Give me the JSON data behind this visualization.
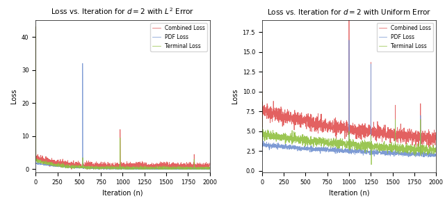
{
  "title1": "Loss vs. Iteration for $d = 2$ with $L^2$ Error",
  "title2": "Loss vs. Iteration for $d = 2$ with Uniform Error",
  "xlabel": "Iteration (n)",
  "ylabel": "Loss",
  "legend_labels": [
    "Combined Loss",
    "PDF Loss",
    "Terminal Loss"
  ],
  "colors": [
    "#e05050",
    "#7090d0",
    "#90c040"
  ],
  "n_iter": 2000,
  "xlim": [
    0,
    2000
  ],
  "ylim1": [
    -1,
    45
  ],
  "ylim2": [
    -0.2,
    19
  ],
  "yticks1": [
    0,
    10,
    20,
    30,
    40
  ],
  "yticks2": [
    0.0,
    2.5,
    5.0,
    7.5,
    10.0,
    12.5,
    15.0,
    17.5
  ],
  "xticks": [
    0,
    250,
    500,
    750,
    1000,
    1250,
    1500,
    1750,
    2000
  ]
}
